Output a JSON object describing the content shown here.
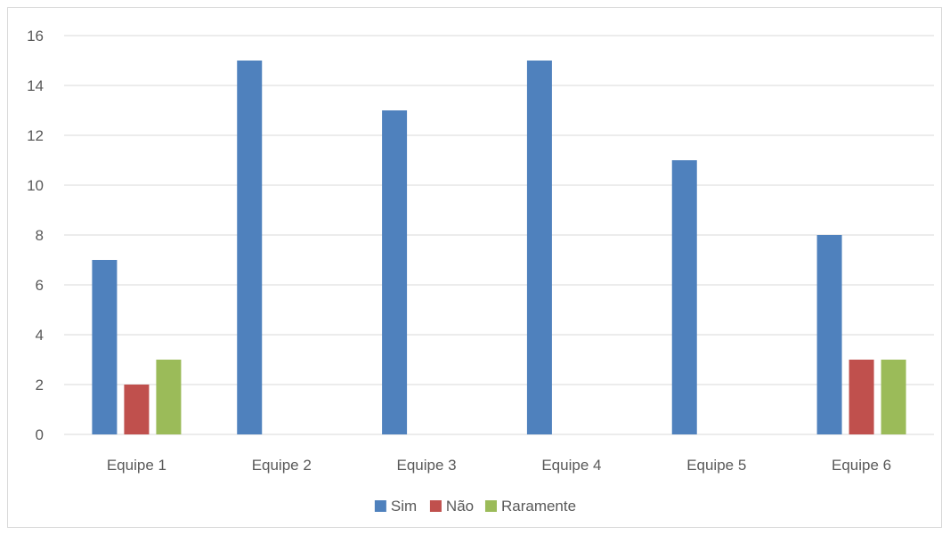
{
  "chart_data": {
    "type": "bar",
    "title": "",
    "xlabel": "",
    "ylabel": "",
    "categories": [
      "Equipe 1",
      "Equipe 2",
      "Equipe 3",
      "Equipe 4",
      "Equipe 5",
      "Equipe 6"
    ],
    "series": [
      {
        "name": "Sim",
        "color": "#4f81bd",
        "values": [
          7,
          15,
          13,
          15,
          11,
          8
        ]
      },
      {
        "name": "Não",
        "color": "#c0504d",
        "values": [
          2,
          0,
          0,
          0,
          0,
          3
        ]
      },
      {
        "name": "Raramente",
        "color": "#9bbb59",
        "values": [
          3,
          0,
          0,
          0,
          0,
          3
        ]
      }
    ],
    "ylim": [
      0,
      16
    ],
    "yticks": [
      0,
      2,
      4,
      6,
      8,
      10,
      12,
      14,
      16
    ],
    "grid": true,
    "legend_position": "bottom"
  }
}
